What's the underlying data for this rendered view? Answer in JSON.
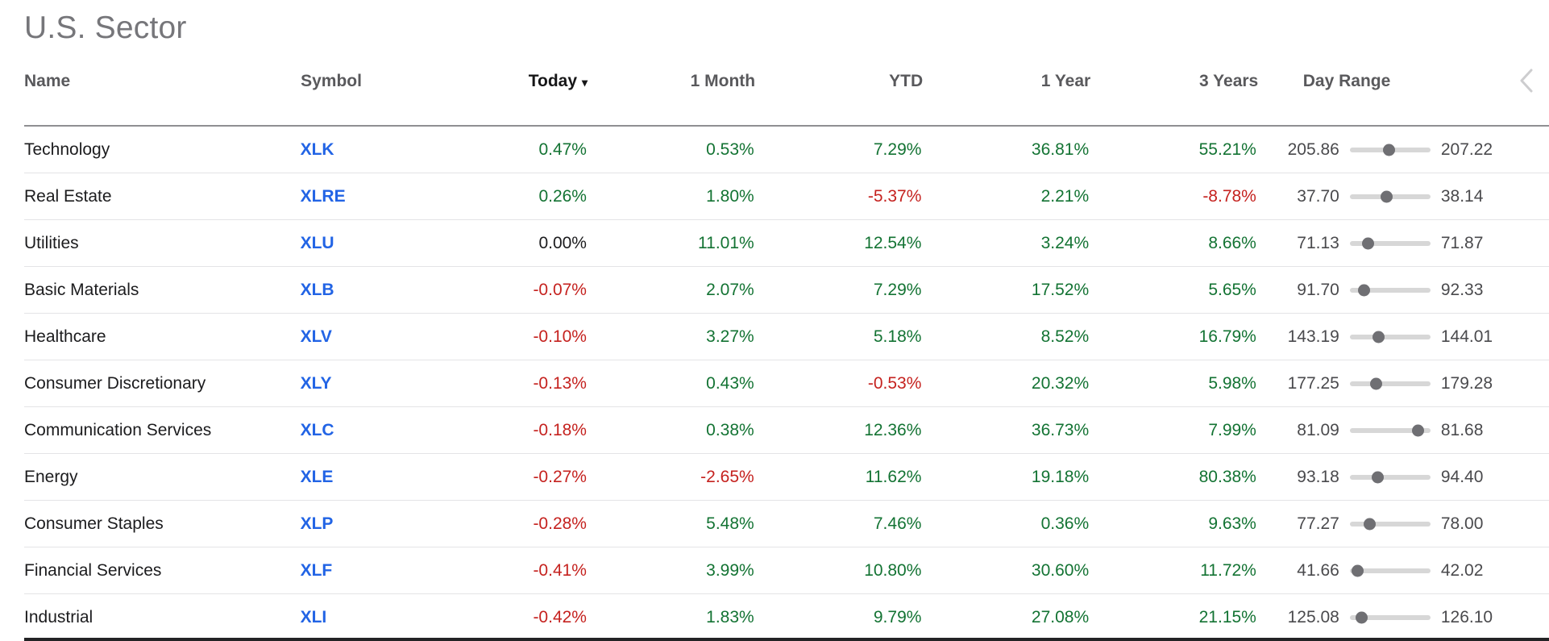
{
  "title": "U.S. Sector",
  "colors": {
    "positive": "#137333",
    "negative": "#c5221f",
    "zero": "#1c1c1e",
    "symbol": "#2264e5",
    "title": "#76767a",
    "header": "#59595c",
    "range_text": "#4a4a4d",
    "track": "#d7d7d7",
    "dot": "#6f6f73"
  },
  "table": {
    "headers": {
      "name": "Name",
      "symbol": "Symbol",
      "today": "Today",
      "today_sort_icon": "▾",
      "one_month": "1 Month",
      "ytd": "YTD",
      "one_year": "1 Year",
      "three_years": "3 Years",
      "day_range": "Day Range"
    },
    "scroll_left_icon": "chevron-left",
    "rows": [
      {
        "name": "Technology",
        "symbol": "XLK",
        "today": "0.47%",
        "one_month": "0.53%",
        "ytd": "7.29%",
        "one_year": "36.81%",
        "three_years": "55.21%",
        "day_low": "205.86",
        "day_high": "207.22",
        "day_pos_pct": 48
      },
      {
        "name": "Real Estate",
        "symbol": "XLRE",
        "today": "0.26%",
        "one_month": "1.80%",
        "ytd": "-5.37%",
        "one_year": "2.21%",
        "three_years": "-8.78%",
        "day_low": "37.70",
        "day_high": "38.14",
        "day_pos_pct": 45
      },
      {
        "name": "Utilities",
        "symbol": "XLU",
        "today": "0.00%",
        "one_month": "11.01%",
        "ytd": "12.54%",
        "one_year": "3.24%",
        "three_years": "8.66%",
        "day_low": "71.13",
        "day_high": "71.87",
        "day_pos_pct": 22
      },
      {
        "name": "Basic Materials",
        "symbol": "XLB",
        "today": "-0.07%",
        "one_month": "2.07%",
        "ytd": "7.29%",
        "one_year": "17.52%",
        "three_years": "5.65%",
        "day_low": "91.70",
        "day_high": "92.33",
        "day_pos_pct": 17
      },
      {
        "name": "Healthcare",
        "symbol": "XLV",
        "today": "-0.10%",
        "one_month": "3.27%",
        "ytd": "5.18%",
        "one_year": "8.52%",
        "three_years": "16.79%",
        "day_low": "143.19",
        "day_high": "144.01",
        "day_pos_pct": 35
      },
      {
        "name": "Consumer Discretionary",
        "symbol": "XLY",
        "today": "-0.13%",
        "one_month": "0.43%",
        "ytd": "-0.53%",
        "one_year": "20.32%",
        "three_years": "5.98%",
        "day_low": "177.25",
        "day_high": "179.28",
        "day_pos_pct": 32
      },
      {
        "name": "Communication Services",
        "symbol": "XLC",
        "today": "-0.18%",
        "one_month": "0.38%",
        "ytd": "12.36%",
        "one_year": "36.73%",
        "three_years": "7.99%",
        "day_low": "81.09",
        "day_high": "81.68",
        "day_pos_pct": 84
      },
      {
        "name": "Energy",
        "symbol": "XLE",
        "today": "-0.27%",
        "one_month": "-2.65%",
        "ytd": "11.62%",
        "one_year": "19.18%",
        "three_years": "80.38%",
        "day_low": "93.18",
        "day_high": "94.40",
        "day_pos_pct": 34
      },
      {
        "name": "Consumer Staples",
        "symbol": "XLP",
        "today": "-0.28%",
        "one_month": "5.48%",
        "ytd": "7.46%",
        "one_year": "0.36%",
        "three_years": "9.63%",
        "day_low": "77.27",
        "day_high": "78.00",
        "day_pos_pct": 24
      },
      {
        "name": "Financial Services",
        "symbol": "XLF",
        "today": "-0.41%",
        "one_month": "3.99%",
        "ytd": "10.80%",
        "one_year": "30.60%",
        "three_years": "11.72%",
        "day_low": "41.66",
        "day_high": "42.02",
        "day_pos_pct": 9
      },
      {
        "name": "Industrial",
        "symbol": "XLI",
        "today": "-0.42%",
        "one_month": "1.83%",
        "ytd": "9.79%",
        "one_year": "27.08%",
        "three_years": "21.15%",
        "day_low": "125.08",
        "day_high": "126.10",
        "day_pos_pct": 14
      }
    ]
  }
}
